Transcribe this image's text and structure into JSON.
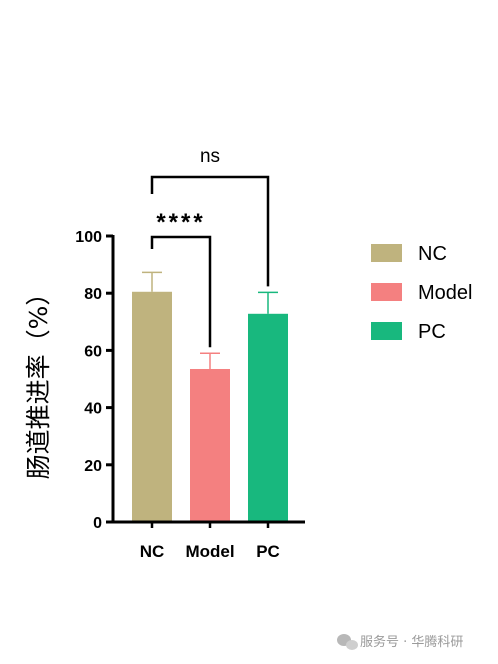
{
  "chart_data": {
    "type": "bar",
    "categories": [
      "NC",
      "Model",
      "PC"
    ],
    "values": [
      80.5,
      53.5,
      72.8
    ],
    "error": [
      6.8,
      5.5,
      7.5
    ],
    "colors": [
      "#bfb37e",
      "#f48080",
      "#18b87e"
    ],
    "ylabel": "肠道推进率（%）",
    "ylim": [
      0,
      100
    ],
    "yticks": [
      0,
      20,
      40,
      60,
      80,
      100
    ],
    "legend": {
      "placement": "right",
      "entries": [
        "NC",
        "Model",
        "PC"
      ]
    },
    "significance": [
      {
        "from": "NC",
        "to": "Model",
        "label": "****"
      },
      {
        "from": "NC",
        "to": "PC",
        "label": "ns"
      }
    ]
  },
  "watermark": {
    "text": "服务号 · 华腾科研",
    "icon": "wechat-icon"
  }
}
